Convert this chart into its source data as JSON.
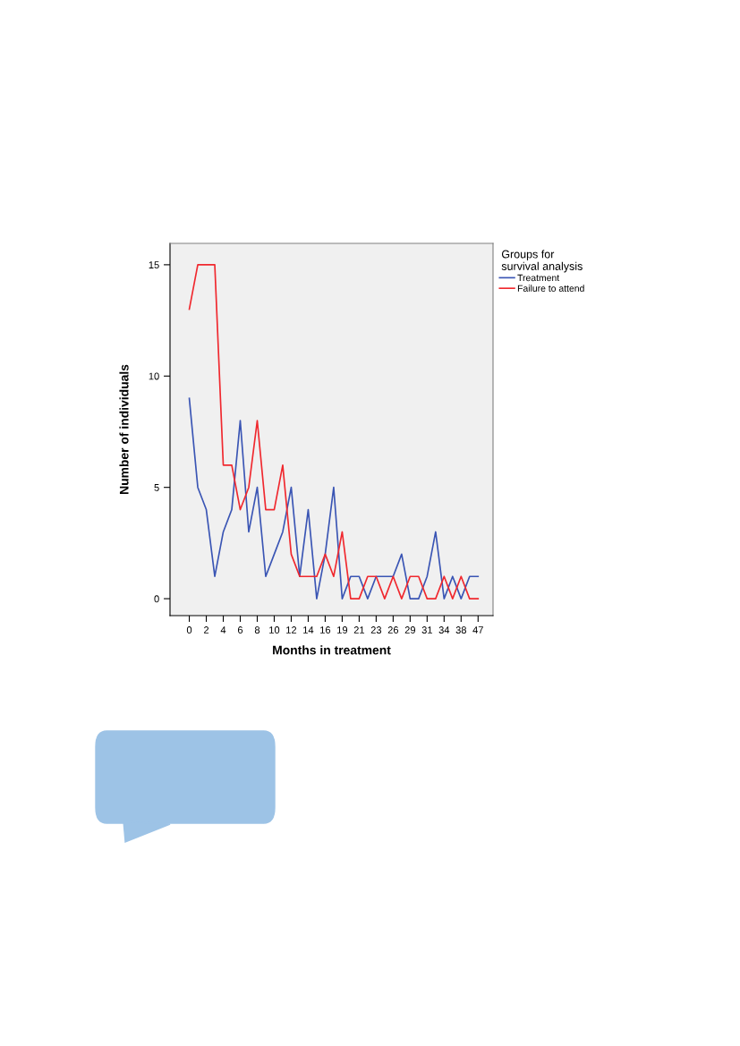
{
  "chart_data": {
    "type": "line",
    "xlabel": "Months in treatment",
    "ylabel": "Number of individuals",
    "legend_title": "Groups for\nsurvival analysis",
    "categories": [
      "0",
      null,
      "2",
      null,
      "4",
      null,
      "6",
      null,
      "8",
      null,
      "10",
      null,
      "12",
      null,
      "14",
      null,
      "16",
      null,
      "19",
      null,
      "21",
      null,
      "23",
      null,
      "26",
      null,
      "29",
      null,
      "31",
      null,
      "34",
      null,
      "38",
      null,
      "47"
    ],
    "series": [
      {
        "name": "Treatment",
        "color": "#3a55b4",
        "values": [
          9,
          5,
          4,
          1,
          3,
          4,
          8,
          3,
          5,
          1,
          2,
          3,
          5,
          1,
          4,
          0,
          2,
          5,
          0,
          1,
          1,
          0,
          1,
          1,
          1,
          2,
          0,
          0,
          1,
          3,
          0,
          1,
          0,
          1,
          1
        ]
      },
      {
        "name": "Failure to attend",
        "color": "#f0282e",
        "values": [
          13,
          15,
          15,
          15,
          6,
          6,
          4,
          5,
          8,
          4,
          4,
          6,
          2,
          1,
          1,
          1,
          2,
          1,
          3,
          0,
          0,
          1,
          1,
          0,
          1,
          0,
          1,
          1,
          0,
          0,
          1,
          0,
          1,
          0,
          0
        ]
      }
    ],
    "ylim": [
      -0.76,
      15.96
    ],
    "yticks": [
      0,
      5,
      10,
      15
    ],
    "grid": false,
    "legend": "top right",
    "marker": "none",
    "line_style": "solid"
  }
}
